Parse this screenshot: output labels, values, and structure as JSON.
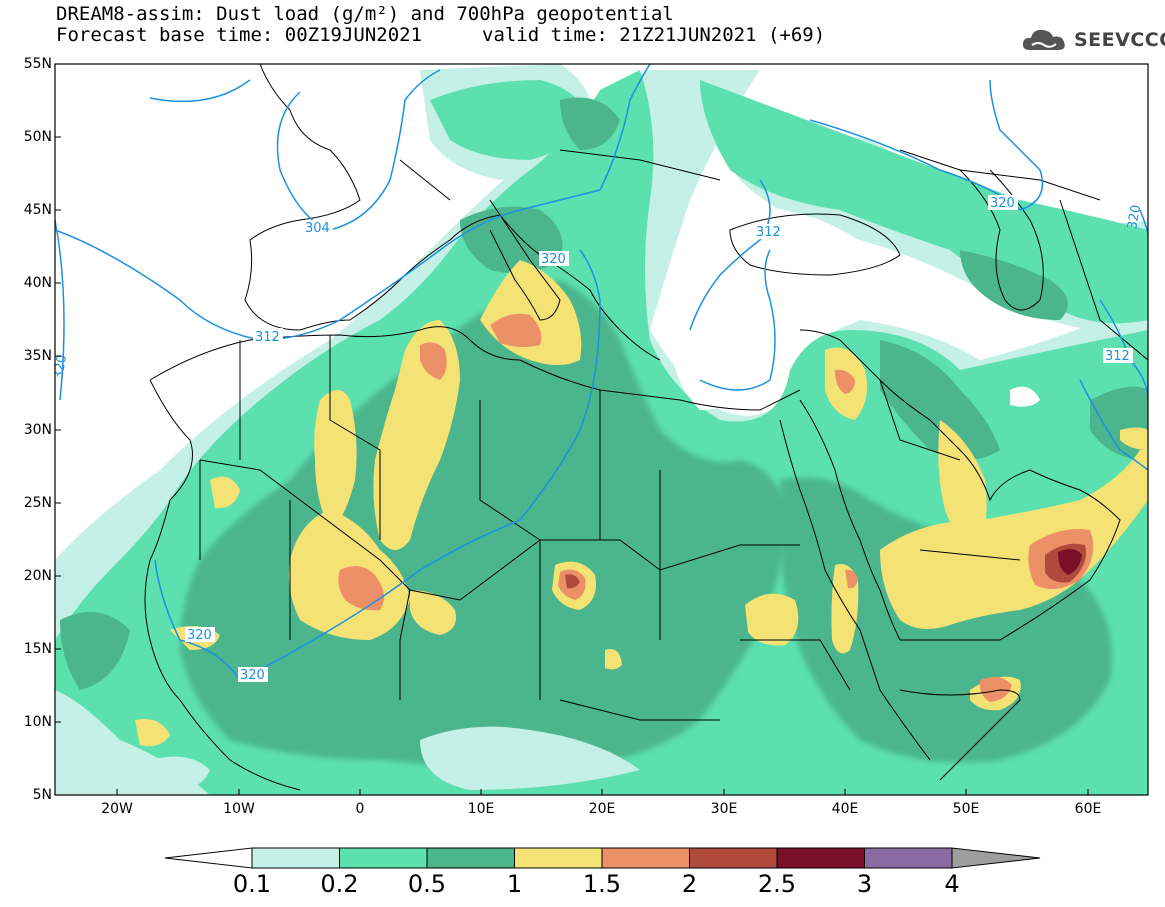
{
  "header": {
    "title_line1": "DREAM8-assim: Dust load (g/m²) and 700hPa geopotential",
    "title_line2_left": "Forecast base time: 00Z19JUN2021",
    "title_line2_right": "valid time: 21Z21JUN2021 (+69)",
    "logo_text": "SEEVCCC",
    "logo_icon": "cloud-icon"
  },
  "axes": {
    "lat_labels": [
      "55N",
      "50N",
      "45N",
      "40N",
      "35N",
      "30N",
      "25N",
      "20N",
      "15N",
      "10N",
      "5N"
    ],
    "lon_labels": [
      "20W",
      "10W",
      "0",
      "10E",
      "20E",
      "30E",
      "40E",
      "50E",
      "60E"
    ]
  },
  "contours": {
    "labels": [
      "304",
      "312",
      "320",
      "320",
      "320",
      "312",
      "320",
      "312",
      "320",
      "320"
    ]
  },
  "colorbar": {
    "tick_labels": [
      "0.1",
      "0.2",
      "0.5",
      "1",
      "1.5",
      "2",
      "2.5",
      "3",
      "4"
    ],
    "colors": [
      "#c4f0e6",
      "#5ce0b0",
      "#4bb58d",
      "#f5e275",
      "#ec9068",
      "#b04a3c",
      "#7a0f2a",
      "#8a6aa0",
      "#9e9e9e"
    ]
  },
  "colors": {
    "land_low": "#4bb58d",
    "land_mid": "#5ce0b0",
    "faint": "#c4f0e6",
    "dust_yellow": "#f5e275",
    "dust_orange": "#ec9068",
    "dust_red": "#b04a3c",
    "dust_dark": "#7a0f2a",
    "contour_line": "#1e90e0",
    "border": "#000000"
  }
}
